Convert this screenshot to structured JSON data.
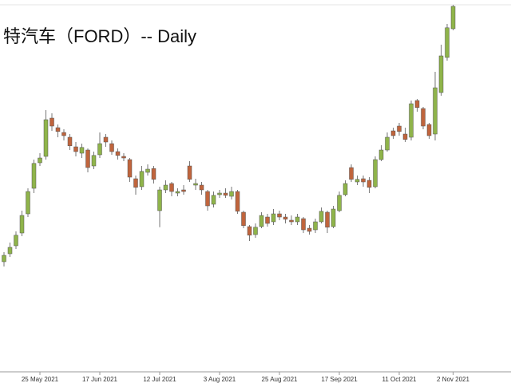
{
  "chart_data": {
    "type": "candlestick",
    "title": "特汽车（FORD）-- Daily",
    "categories": [
      null,
      null,
      null,
      null,
      null,
      null,
      "25 May 2021",
      null,
      null,
      null,
      null,
      null,
      null,
      null,
      null,
      null,
      "17 Jun 2021",
      null,
      null,
      null,
      null,
      null,
      null,
      null,
      null,
      null,
      "12 Jul 2021",
      null,
      null,
      null,
      null,
      null,
      null,
      null,
      null,
      null,
      "3 Aug 2021",
      null,
      null,
      null,
      null,
      null,
      null,
      null,
      null,
      null,
      "25 Aug 2021",
      null,
      null,
      null,
      null,
      null,
      null,
      null,
      null,
      null,
      "17 Sep 2021",
      null,
      null,
      null,
      null,
      null,
      null,
      null,
      null,
      null,
      "11 Oct 2021",
      null,
      null,
      null,
      null,
      null,
      null,
      null,
      null,
      "2 Nov 2021"
    ],
    "open": [
      11.8,
      12.05,
      12.3,
      12.7,
      13.3,
      14.1,
      14.9,
      15.1,
      16.3,
      16.0,
      15.85,
      15.7,
      15.4,
      15.2,
      15.3,
      14.8,
      15.15,
      15.7,
      15.5,
      15.25,
      15.1,
      15.0,
      14.4,
      14.15,
      14.6,
      14.72,
      13.4,
      14.05,
      14.25,
      13.95,
      14.05,
      14.8,
      14.2,
      14.2,
      14.0,
      13.6,
      13.9,
      13.95,
      13.85,
      14.0,
      13.35,
      12.9,
      12.65,
      12.9,
      13.2,
      13.05,
      13.3,
      13.2,
      13.1,
      13.05,
      13.15,
      12.85,
      12.8,
      13.05,
      13.35,
      12.9,
      13.4,
      13.9,
      14.75,
      14.3,
      14.4,
      14.35,
      14.15,
      15.0,
      15.3,
      15.9,
      16.05,
      15.8,
      15.7,
      16.85,
      16.6,
      16.1,
      15.8,
      17.1,
      18.2,
      19.1
    ],
    "high": [
      12.1,
      12.4,
      12.75,
      13.4,
      14.1,
      15.0,
      15.2,
      16.55,
      16.45,
      16.1,
      15.95,
      15.8,
      15.55,
      15.5,
      15.35,
      15.25,
      15.85,
      15.8,
      15.6,
      15.35,
      15.2,
      15.05,
      14.5,
      14.8,
      14.85,
      14.8,
      14.15,
      14.35,
      14.3,
      14.1,
      14.2,
      14.95,
      14.4,
      14.3,
      14.05,
      14.0,
      14.05,
      14.1,
      14.15,
      14.05,
      13.4,
      12.95,
      13.0,
      13.35,
      13.3,
      13.45,
      13.4,
      13.3,
      13.25,
      13.3,
      13.2,
      12.95,
      13.15,
      13.5,
      13.4,
      13.55,
      14.0,
      14.35,
      14.85,
      14.5,
      14.5,
      14.45,
      15.1,
      15.45,
      15.85,
      16.0,
      16.15,
      16.0,
      16.85,
      16.9,
      16.65,
      16.15,
      17.75,
      18.6,
      19.25,
      19.85
    ],
    "low": [
      11.65,
      11.95,
      12.2,
      12.6,
      13.2,
      13.95,
      14.8,
      15.0,
      15.9,
      15.7,
      15.6,
      15.3,
      15.1,
      15.05,
      14.6,
      14.7,
      15.05,
      15.4,
      15.15,
      15.0,
      14.95,
      14.3,
      13.9,
      14.05,
      14.5,
      14.25,
      12.88,
      13.95,
      13.85,
      13.85,
      13.9,
      14.3,
      14.05,
      13.9,
      13.4,
      13.5,
      13.8,
      13.8,
      13.75,
      13.3,
      12.85,
      12.45,
      12.55,
      12.85,
      12.9,
      12.95,
      13.1,
      13.0,
      12.95,
      12.95,
      12.7,
      12.65,
      12.7,
      13.0,
      12.7,
      12.85,
      13.35,
      13.85,
      14.3,
      14.2,
      14.15,
      13.95,
      14.1,
      14.95,
      15.25,
      15.65,
      15.75,
      15.55,
      15.6,
      16.5,
      15.95,
      15.65,
      15.6,
      17.0,
      18.1,
      19.05
    ],
    "close": [
      12.0,
      12.25,
      12.63,
      13.25,
      14.0,
      14.88,
      15.05,
      16.25,
      16.05,
      15.88,
      15.75,
      15.43,
      15.25,
      15.38,
      14.75,
      15.13,
      15.5,
      15.55,
      15.25,
      15.13,
      15.05,
      14.45,
      14.13,
      14.63,
      14.7,
      14.38,
      14.05,
      14.2,
      14.0,
      14.0,
      14.0,
      14.38,
      14.25,
      14.05,
      13.55,
      13.88,
      13.95,
      13.88,
      14.0,
      13.38,
      12.93,
      12.63,
      12.88,
      13.25,
      13.0,
      13.3,
      13.2,
      13.13,
      13.05,
      13.2,
      12.8,
      12.75,
      13.05,
      13.38,
      12.88,
      13.45,
      13.88,
      14.25,
      14.38,
      14.38,
      14.3,
      14.13,
      15.0,
      15.3,
      15.7,
      15.75,
      15.88,
      15.63,
      16.75,
      16.63,
      16.05,
      15.75,
      17.25,
      18.25,
      19.13,
      19.8
    ],
    "up_color": "#8fb44a",
    "down_color": "#c0643c",
    "ylim": [
      8.25,
      20
    ]
  }
}
